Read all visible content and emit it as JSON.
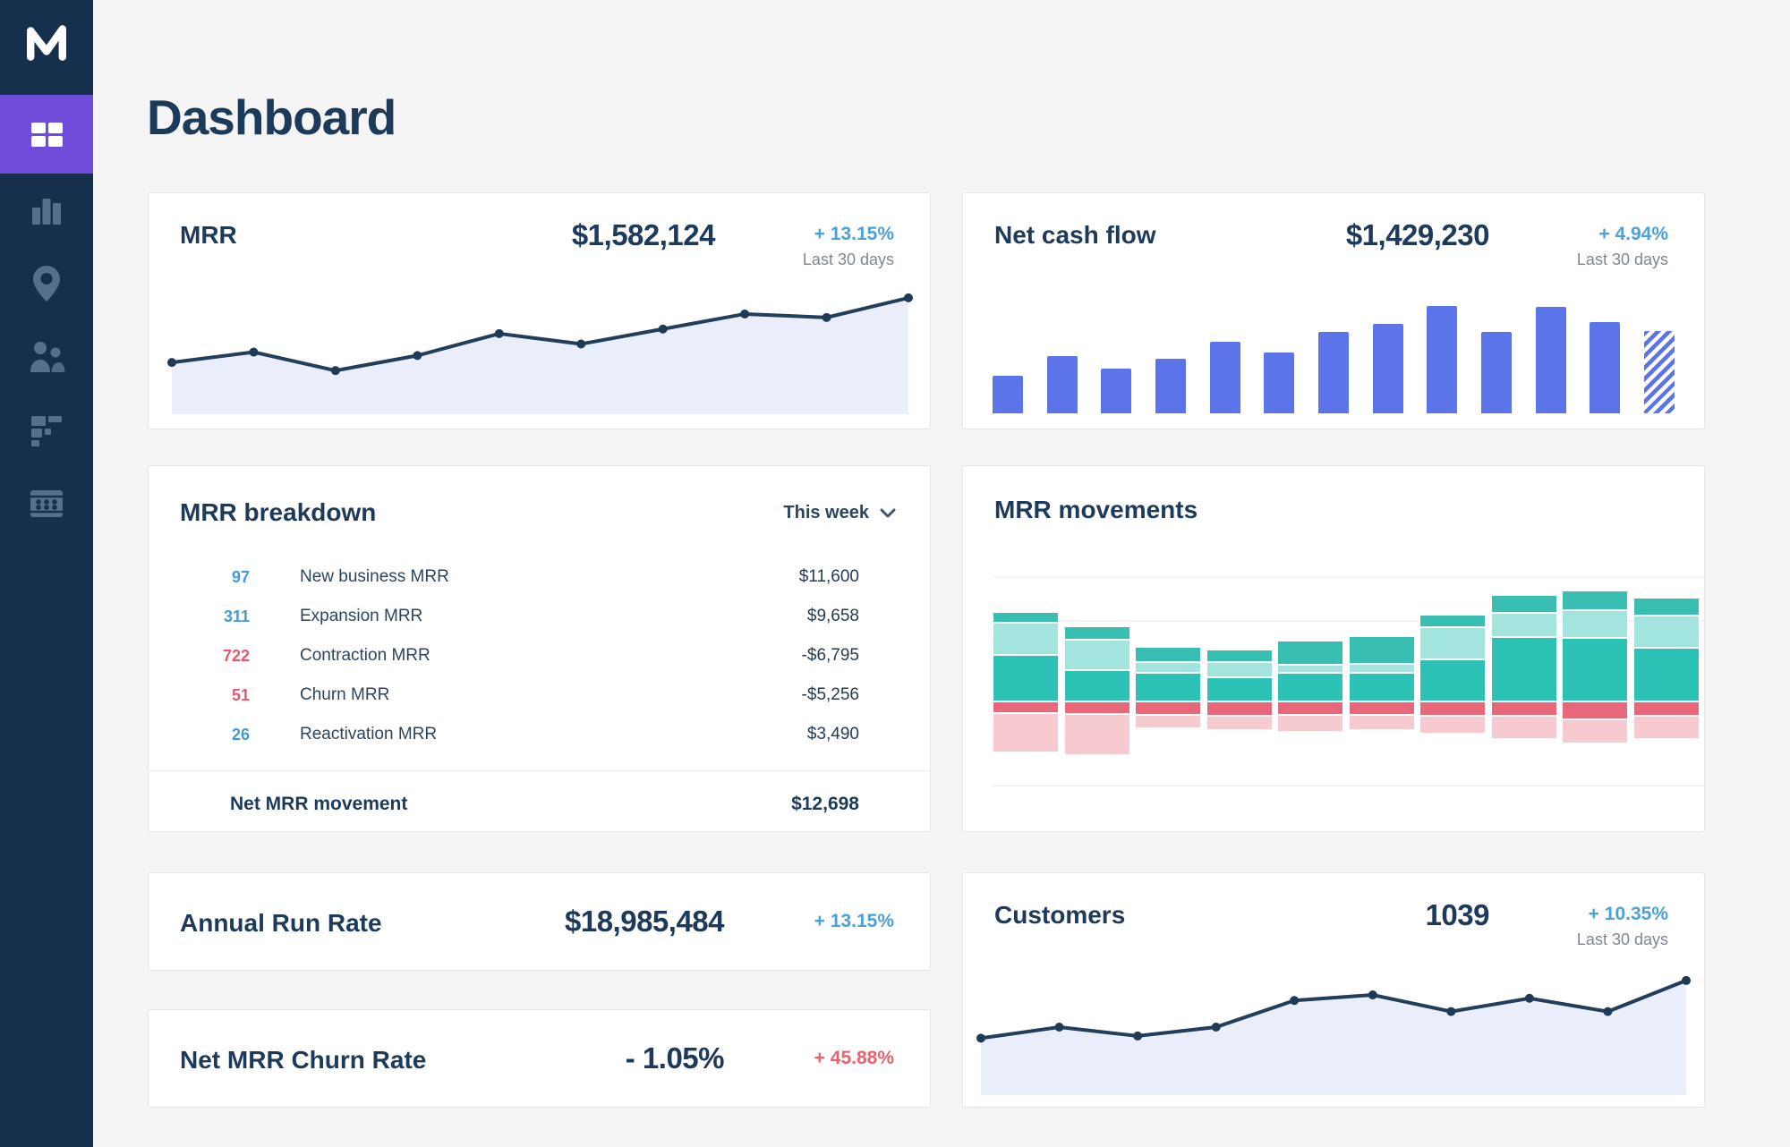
{
  "header": {
    "title": "Dashboard"
  },
  "sidebar": {
    "logo_icon": "chartmogul-logo-icon",
    "items": [
      {
        "key": "dashboard",
        "icon": "dashboard-grid-icon",
        "active": true
      },
      {
        "key": "charts",
        "icon": "bar-chart-icon",
        "active": false
      },
      {
        "key": "geography",
        "icon": "map-pin-icon",
        "active": false
      },
      {
        "key": "customers",
        "icon": "people-icon",
        "active": false
      },
      {
        "key": "cohorts",
        "icon": "cohorts-blocks-icon",
        "active": false
      },
      {
        "key": "data",
        "icon": "data-table-icon",
        "active": false
      }
    ]
  },
  "cards": {
    "mrr": {
      "title": "MRR",
      "value": "$1,582,124",
      "delta": "+ 13.15%",
      "delta_color": "blue",
      "period": "Last 30 days"
    },
    "net_cash_flow": {
      "title": "Net cash flow",
      "value": "$1,429,230",
      "delta": "+ 4.94%",
      "delta_color": "blue",
      "period": "Last 30 days"
    },
    "mrr_breakdown": {
      "title": "MRR breakdown",
      "filter": "This week",
      "rows": [
        {
          "count": "97",
          "count_color": "blue",
          "label": "New business MRR",
          "value": "$11,600"
        },
        {
          "count": "311",
          "count_color": "blue",
          "label": "Expansion MRR",
          "value": "$9,658"
        },
        {
          "count": "722",
          "count_color": "red",
          "label": "Contraction MRR",
          "value": "-$6,795"
        },
        {
          "count": "51",
          "count_color": "red",
          "label": "Churn MRR",
          "value": "-$5,256"
        },
        {
          "count": "26",
          "count_color": "blue",
          "label": "Reactivation MRR",
          "value": "$3,490"
        }
      ],
      "footer": {
        "label": "Net MRR movement",
        "value": "$12,698"
      }
    },
    "mrr_movements": {
      "title": "MRR movements"
    },
    "annual_run_rate": {
      "title": "Annual Run Rate",
      "value": "$18,985,484",
      "delta": "+ 13.15%",
      "delta_color": "blue"
    },
    "net_mrr_churn_rate": {
      "title": "Net MRR Churn Rate",
      "value": "- 1.05%",
      "delta": "+ 45.88%",
      "delta_color": "red"
    },
    "customers": {
      "title": "Customers",
      "value": "1039",
      "delta": "+ 10.35%",
      "delta_color": "blue",
      "period": "Last 30 days"
    }
  },
  "colors": {
    "accent_blue": "#4ba1da",
    "negative_red": "#e9626f",
    "sidebar_active_purple": "#6f4cd9",
    "bar_blue": "#5c74e9",
    "line_navy": "#223e5a",
    "area_fill": "#e9eefa"
  },
  "chart_data": [
    {
      "id": "mrr_trend",
      "type": "area",
      "title": "MRR trend (no axes shown)",
      "values_relative": [
        34,
        43,
        27,
        40,
        59,
        50,
        63,
        76,
        73,
        90
      ],
      "line_color": "#223e5a",
      "dot_color": "#1e3a55",
      "fill_color": "#e9eefa",
      "note": "10 points, rising trend, no axis labels visible"
    },
    {
      "id": "net_cash_flow",
      "type": "bar",
      "title": "Net cash flow (no axes shown)",
      "values_relative": [
        35,
        53,
        42,
        51,
        67,
        57,
        76,
        83,
        100,
        76,
        99,
        85,
        77
      ],
      "bar_color": "#5c74e9",
      "last_bar_style": "hatched-projection",
      "note": "13 bars, final bar drawn with diagonal hatch, no axis labels visible"
    },
    {
      "id": "mrr_movements",
      "type": "stacked-bar",
      "title": "MRR movements (no legend shown)",
      "positive_series": [
        {
          "name": "segment-top",
          "color": "#38bfb2",
          "values": [
            12,
            15,
            17,
            14,
            27,
            31,
            14,
            20,
            22,
            20
          ]
        },
        {
          "name": "segment-middle",
          "color": "#a4e4de",
          "values": [
            36,
            34,
            12,
            17,
            9,
            10,
            36,
            27,
            31,
            36
          ]
        },
        {
          "name": "segment-base",
          "color": "#2cc2b6",
          "values": [
            52,
            35,
            32,
            27,
            32,
            32,
            47,
            72,
            71,
            60
          ]
        }
      ],
      "negative_series": [
        {
          "name": "segment-neg-dark",
          "color": "#e8687a",
          "values": [
            13,
            14,
            15,
            16,
            15,
            15,
            16,
            16,
            20,
            16
          ]
        },
        {
          "name": "segment-neg-light",
          "color": "#f7cad0",
          "values": [
            44,
            46,
            15,
            16,
            19,
            17,
            20,
            26,
            27,
            26
          ]
        }
      ],
      "note": "10 stacked bars around a zero baseline; teal segments above, red/pink below; values in relative units"
    },
    {
      "id": "customers_trend",
      "type": "area",
      "title": "Customers trend (no axes shown)",
      "values_relative": [
        40,
        50,
        42,
        50,
        74,
        79,
        64,
        76,
        64,
        92
      ],
      "line_color": "#223e5a",
      "dot_color": "#1e3a55",
      "fill_color": "#e9eefa",
      "note": "10 points, rising trend, no axis labels visible"
    }
  ]
}
